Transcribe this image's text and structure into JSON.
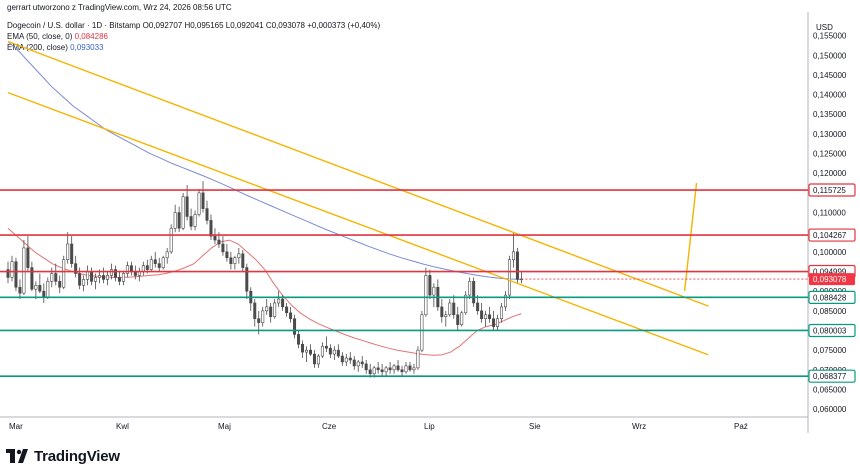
{
  "header": {
    "author_line": "gerrart utworzono z TradingView.com, Wrz 24, 2026 08:56 UTC",
    "symbol": "Dogecoin / U.S. dollar · 1D · Bitstamp",
    "ohlc": "O0,092707 H0,095165 L0,092041 C0,093078 +0,000373 (+0,40%)",
    "ema50_label": "EMA (50, close, 0)",
    "ema50_value": "0,084286",
    "ema200_label": "EMA (200, close)",
    "ema200_value": "0,093033"
  },
  "footer": {
    "brand": "TradingView"
  },
  "colors": {
    "bull": "#26a69a",
    "bear": "#ef5350",
    "candle": "#4a4a4a",
    "ema50": "#e57373",
    "ema200": "#7b8bd4",
    "channel": "#f5b400",
    "resistance": "#e0343e",
    "support": "#089981",
    "current_price_bg": "#f23645"
  },
  "chart_data": {
    "type": "candlestick",
    "currency_label": "USD",
    "y_ticks": [
      "0,155000",
      "0,150000",
      "0,145000",
      "0,140000",
      "0,135000",
      "0,130000",
      "0,125000",
      "0,120000",
      "0,115000",
      "0,110000",
      "0,105000",
      "0,100000",
      "0,095000",
      "0,090000",
      "0,085000",
      "0,080000",
      "0,075000",
      "0,070000",
      "0,065000",
      "0,060000"
    ],
    "y_tick_values": [
      0.155,
      0.15,
      0.145,
      0.14,
      0.135,
      0.13,
      0.125,
      0.12,
      0.115,
      0.11,
      0.105,
      0.1,
      0.095,
      0.09,
      0.085,
      0.08,
      0.075,
      0.07,
      0.065,
      0.06
    ],
    "ylim": [
      0.058,
      0.161
    ],
    "x_ticks": [
      "Mar",
      "Kwl",
      "Maj",
      "Cze",
      "Lip",
      "Sie",
      "Wrz",
      "Paź"
    ],
    "horizontal_levels": [
      {
        "value": 0.115725,
        "label": "0,115725",
        "kind": "resistance"
      },
      {
        "value": 0.104267,
        "label": "0,104267",
        "kind": "resistance"
      },
      {
        "value": 0.094999,
        "label": "0,094999",
        "kind": "resistance"
      },
      {
        "value": 0.088428,
        "label": "0,088428",
        "kind": "support"
      },
      {
        "value": 0.080003,
        "label": "0,080003",
        "kind": "support"
      },
      {
        "value": 0.068377,
        "label": "0,068377",
        "kind": "support"
      }
    ],
    "current_price": {
      "value": 0.093078,
      "label": "0,093078"
    },
    "candles": [
      [
        0.0955,
        0.0975,
        0.092,
        0.0935
      ],
      [
        0.0935,
        0.099,
        0.0925,
        0.0975
      ],
      [
        0.0975,
        0.0985,
        0.09,
        0.091
      ],
      [
        0.091,
        0.093,
        0.088,
        0.0895
      ],
      [
        0.0895,
        0.103,
        0.089,
        0.101
      ],
      [
        0.101,
        0.104,
        0.095,
        0.096
      ],
      [
        0.096,
        0.0975,
        0.09,
        0.0905
      ],
      [
        0.0905,
        0.0925,
        0.088,
        0.0915
      ],
      [
        0.0915,
        0.0945,
        0.0895,
        0.09
      ],
      [
        0.09,
        0.092,
        0.087,
        0.0885
      ],
      [
        0.0885,
        0.0935,
        0.088,
        0.0925
      ],
      [
        0.0925,
        0.096,
        0.091,
        0.0945
      ],
      [
        0.0945,
        0.097,
        0.0915,
        0.0925
      ],
      [
        0.0925,
        0.094,
        0.0895,
        0.091
      ],
      [
        0.091,
        0.099,
        0.0905,
        0.098
      ],
      [
        0.098,
        0.105,
        0.097,
        0.102
      ],
      [
        0.102,
        0.104,
        0.096,
        0.097
      ],
      [
        0.097,
        0.099,
        0.0935,
        0.0945
      ],
      [
        0.0945,
        0.096,
        0.0905,
        0.0915
      ],
      [
        0.0915,
        0.094,
        0.09,
        0.093
      ],
      [
        0.093,
        0.0965,
        0.0915,
        0.095
      ],
      [
        0.095,
        0.096,
        0.0915,
        0.0925
      ],
      [
        0.0925,
        0.0945,
        0.0905,
        0.0935
      ],
      [
        0.0935,
        0.0955,
        0.092,
        0.094
      ],
      [
        0.094,
        0.096,
        0.092,
        0.093
      ],
      [
        0.093,
        0.095,
        0.0915,
        0.094
      ],
      [
        0.094,
        0.097,
        0.093,
        0.0955
      ],
      [
        0.0955,
        0.0965,
        0.0925,
        0.0935
      ],
      [
        0.0935,
        0.095,
        0.0915,
        0.0925
      ],
      [
        0.0925,
        0.095,
        0.0915,
        0.0945
      ],
      [
        0.0945,
        0.0975,
        0.0935,
        0.0965
      ],
      [
        0.0965,
        0.0975,
        0.094,
        0.095
      ],
      [
        0.095,
        0.0965,
        0.093,
        0.094
      ],
      [
        0.094,
        0.096,
        0.0925,
        0.095
      ],
      [
        0.095,
        0.0975,
        0.094,
        0.0965
      ],
      [
        0.0965,
        0.098,
        0.0945,
        0.0955
      ],
      [
        0.0955,
        0.099,
        0.095,
        0.098
      ],
      [
        0.098,
        0.1,
        0.096,
        0.097
      ],
      [
        0.097,
        0.0985,
        0.095,
        0.096
      ],
      [
        0.096,
        0.099,
        0.0955,
        0.0985
      ],
      [
        0.0985,
        0.101,
        0.097,
        0.1
      ],
      [
        0.1,
        0.107,
        0.0995,
        0.106
      ],
      [
        0.106,
        0.112,
        0.105,
        0.11
      ],
      [
        0.11,
        0.1115,
        0.105,
        0.106
      ],
      [
        0.106,
        0.115,
        0.1055,
        0.114
      ],
      [
        0.114,
        0.117,
        0.108,
        0.109
      ],
      [
        0.109,
        0.111,
        0.1055,
        0.1065
      ],
      [
        0.1065,
        0.1105,
        0.1055,
        0.1095
      ],
      [
        0.1095,
        0.116,
        0.109,
        0.115
      ],
      [
        0.115,
        0.118,
        0.11,
        0.111
      ],
      [
        0.111,
        0.113,
        0.107,
        0.108
      ],
      [
        0.108,
        0.1095,
        0.103,
        0.104
      ],
      [
        0.104,
        0.106,
        0.102,
        0.103
      ],
      [
        0.103,
        0.105,
        0.101,
        0.102
      ],
      [
        0.102,
        0.104,
        0.099,
        0.1
      ],
      [
        0.1,
        0.102,
        0.0975,
        0.0985
      ],
      [
        0.0985,
        0.1,
        0.0955,
        0.097
      ],
      [
        0.097,
        0.099,
        0.0955,
        0.0985
      ],
      [
        0.0985,
        0.101,
        0.097,
        0.0995
      ],
      [
        0.0995,
        0.1005,
        0.095,
        0.096
      ],
      [
        0.096,
        0.097,
        0.088,
        0.09
      ],
      [
        0.09,
        0.091,
        0.085,
        0.087
      ],
      [
        0.087,
        0.088,
        0.081,
        0.083
      ],
      [
        0.083,
        0.085,
        0.079,
        0.082
      ],
      [
        0.082,
        0.086,
        0.081,
        0.085
      ],
      [
        0.085,
        0.088,
        0.084,
        0.086
      ],
      [
        0.086,
        0.087,
        0.082,
        0.0835
      ],
      [
        0.0835,
        0.088,
        0.083,
        0.087
      ],
      [
        0.087,
        0.09,
        0.086,
        0.088
      ],
      [
        0.088,
        0.089,
        0.085,
        0.086
      ],
      [
        0.086,
        0.087,
        0.0835,
        0.0845
      ],
      [
        0.0845,
        0.086,
        0.082,
        0.083
      ],
      [
        0.083,
        0.084,
        0.078,
        0.079
      ],
      [
        0.079,
        0.08,
        0.0755,
        0.0765
      ],
      [
        0.0765,
        0.0775,
        0.073,
        0.0745
      ],
      [
        0.0745,
        0.076,
        0.072,
        0.075
      ],
      [
        0.075,
        0.0765,
        0.0735,
        0.074
      ],
      [
        0.074,
        0.075,
        0.0705,
        0.0715
      ],
      [
        0.0715,
        0.074,
        0.0705,
        0.0735
      ],
      [
        0.0735,
        0.077,
        0.073,
        0.076
      ],
      [
        0.076,
        0.0785,
        0.0745,
        0.0755
      ],
      [
        0.0755,
        0.0765,
        0.073,
        0.074
      ],
      [
        0.074,
        0.076,
        0.0725,
        0.075
      ],
      [
        0.075,
        0.0765,
        0.073,
        0.0735
      ],
      [
        0.0735,
        0.0745,
        0.071,
        0.072
      ],
      [
        0.072,
        0.074,
        0.071,
        0.073
      ],
      [
        0.073,
        0.0745,
        0.0715,
        0.0725
      ],
      [
        0.0725,
        0.0735,
        0.07,
        0.071
      ],
      [
        0.071,
        0.0725,
        0.0695,
        0.072
      ],
      [
        0.072,
        0.0735,
        0.0705,
        0.0715
      ],
      [
        0.0715,
        0.0725,
        0.069,
        0.07
      ],
      [
        0.07,
        0.0715,
        0.068,
        0.069
      ],
      [
        0.069,
        0.071,
        0.068,
        0.0705
      ],
      [
        0.0705,
        0.072,
        0.069,
        0.07
      ],
      [
        0.07,
        0.0715,
        0.0685,
        0.0695
      ],
      [
        0.0695,
        0.071,
        0.0685,
        0.0705
      ],
      [
        0.0705,
        0.072,
        0.069,
        0.07
      ],
      [
        0.07,
        0.0715,
        0.069,
        0.071
      ],
      [
        0.071,
        0.0725,
        0.0695,
        0.07
      ],
      [
        0.07,
        0.071,
        0.0685,
        0.0695
      ],
      [
        0.0695,
        0.072,
        0.069,
        0.071
      ],
      [
        0.071,
        0.072,
        0.0695,
        0.07
      ],
      [
        0.07,
        0.0715,
        0.069,
        0.0705
      ],
      [
        0.0705,
        0.076,
        0.07,
        0.075
      ],
      [
        0.075,
        0.085,
        0.0745,
        0.084
      ],
      [
        0.084,
        0.096,
        0.0835,
        0.094
      ],
      [
        0.094,
        0.0955,
        0.088,
        0.089
      ],
      [
        0.089,
        0.092,
        0.086,
        0.091
      ],
      [
        0.091,
        0.093,
        0.085,
        0.086
      ],
      [
        0.086,
        0.088,
        0.082,
        0.0835
      ],
      [
        0.0835,
        0.085,
        0.081,
        0.084
      ],
      [
        0.084,
        0.088,
        0.0835,
        0.087
      ],
      [
        0.087,
        0.089,
        0.083,
        0.084
      ],
      [
        0.084,
        0.086,
        0.08,
        0.0815
      ],
      [
        0.0815,
        0.085,
        0.081,
        0.0845
      ],
      [
        0.0845,
        0.09,
        0.084,
        0.089
      ],
      [
        0.089,
        0.0935,
        0.088,
        0.0925
      ],
      [
        0.0925,
        0.0935,
        0.086,
        0.087
      ],
      [
        0.087,
        0.089,
        0.084,
        0.085
      ],
      [
        0.085,
        0.087,
        0.082,
        0.083
      ],
      [
        0.083,
        0.085,
        0.081,
        0.084
      ],
      [
        0.084,
        0.086,
        0.082,
        0.083
      ],
      [
        0.083,
        0.085,
        0.08,
        0.081
      ],
      [
        0.081,
        0.084,
        0.08,
        0.083
      ],
      [
        0.083,
        0.087,
        0.082,
        0.086
      ],
      [
        0.086,
        0.09,
        0.085,
        0.089
      ],
      [
        0.089,
        0.099,
        0.088,
        0.098
      ],
      [
        0.098,
        0.105,
        0.096,
        0.1
      ],
      [
        0.1,
        0.101,
        0.092,
        0.093
      ],
      [
        0.093,
        0.0952,
        0.092,
        0.0931
      ]
    ],
    "ema50": [
      0.106,
      0.104,
      0.102,
      0.1,
      0.0985,
      0.097,
      0.096,
      0.0952,
      0.0945,
      0.094,
      0.0938,
      0.0936,
      0.0935,
      0.0935,
      0.0936,
      0.0938,
      0.094,
      0.0942,
      0.0946,
      0.0952,
      0.096,
      0.097,
      0.099,
      0.101,
      0.1025,
      0.103,
      0.102,
      0.1,
      0.098,
      0.0955,
      0.092,
      0.089,
      0.0865,
      0.0845,
      0.083,
      0.0818,
      0.0808,
      0.0799,
      0.079,
      0.0782,
      0.0775,
      0.0768,
      0.0761,
      0.0755,
      0.075,
      0.0746,
      0.0742,
      0.0739,
      0.0737,
      0.0738,
      0.0745,
      0.076,
      0.078,
      0.08,
      0.081,
      0.0815,
      0.0825,
      0.0835,
      0.0843
    ],
    "ema200": [
      0.1535,
      0.151,
      0.148,
      0.145,
      0.142,
      0.1395,
      0.137,
      0.135,
      0.133,
      0.131,
      0.1295,
      0.128,
      0.1265,
      0.125,
      0.1238,
      0.1225,
      0.1214,
      0.1203,
      0.1192,
      0.118,
      0.1168,
      0.1155,
      0.1142,
      0.113,
      0.1118,
      0.1106,
      0.1094,
      0.1082,
      0.107,
      0.1058,
      0.1047,
      0.1036,
      0.1025,
      0.1014,
      0.1004,
      0.0994,
      0.0985,
      0.0977,
      0.0969,
      0.0962,
      0.0956,
      0.095,
      0.0945,
      0.094,
      0.0936,
      0.0933,
      0.0931,
      0.093
    ],
    "channel_upper": {
      "start": {
        "i": 0,
        "v": 0.1535
      },
      "end": {
        "i": 176,
        "v": 0.0862
      }
    },
    "channel_lower": {
      "start": {
        "i": 0,
        "v": 0.1405
      },
      "end": {
        "i": 176,
        "v": 0.0738
      }
    },
    "breakout_ray": {
      "start": {
        "i": 170,
        "v": 0.09
      },
      "end": {
        "i": 173,
        "v": 0.1175
      }
    }
  }
}
